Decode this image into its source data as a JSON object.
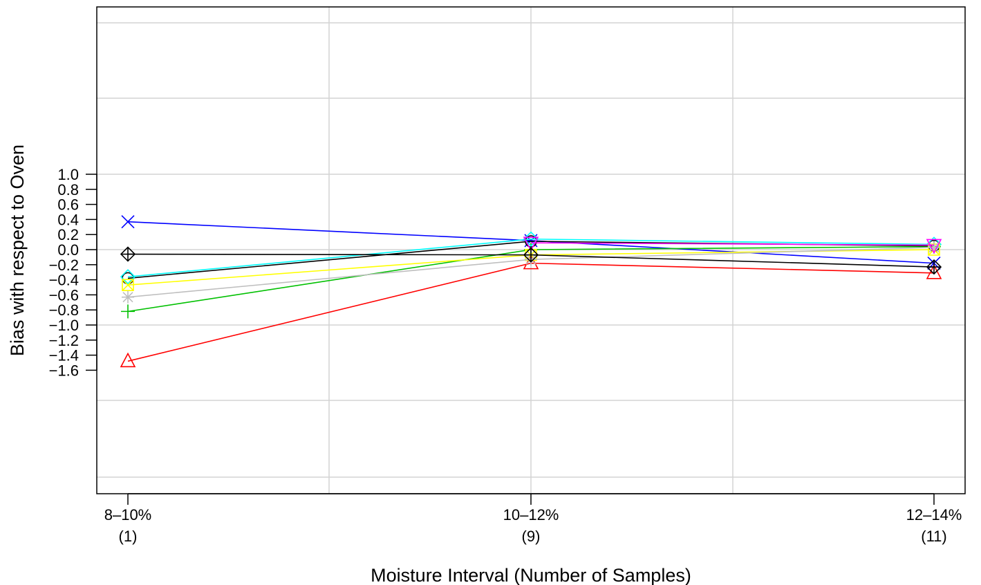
{
  "chart_data": {
    "type": "line",
    "xlabel": "Moisture Interval (Number of Samples)",
    "ylabel": "Bias with respect to Oven",
    "categories": [
      {
        "interval": "8–10%",
        "samples": "(1)"
      },
      {
        "interval": "10–12%",
        "samples": "(9)"
      },
      {
        "interval": "12–14%",
        "samples": "(11)"
      }
    ],
    "y_ticks": [
      "1.0",
      "0.8",
      "0.6",
      "0.4",
      "0.2",
      "0.0",
      "−0.2",
      "−0.4",
      "−0.6",
      "−0.8",
      "−1.0",
      "−1.2",
      "−1.4",
      "−1.6"
    ],
    "ylim": [
      -1.6,
      1.0
    ],
    "grid": true,
    "legend": "none",
    "series": [
      {
        "color": "#0000ff",
        "marker": "x",
        "values": [
          0.37,
          0.12,
          -0.18
        ]
      },
      {
        "color": "#ff0000",
        "marker": "triangle",
        "values": [
          -1.48,
          -0.18,
          -0.31
        ]
      },
      {
        "color": "#00c000",
        "marker": "plus",
        "values": [
          -0.82,
          0.0,
          0.04
        ]
      },
      {
        "color": "#000000",
        "marker": "circle",
        "values": [
          -0.38,
          0.11,
          0.05
        ]
      },
      {
        "color": "#00ffff",
        "marker": "diamond",
        "values": [
          -0.36,
          0.14,
          0.07
        ]
      },
      {
        "color": "#ffff00",
        "marker": "square-cross",
        "values": [
          -0.47,
          -0.07,
          0.0
        ]
      },
      {
        "color": "#bebebe",
        "marker": "asterisk",
        "values": [
          -0.63,
          -0.13,
          0.03
        ]
      },
      {
        "color": "#ff00ff",
        "marker": "inverted-triangle",
        "values": [
          null,
          0.09,
          0.06
        ]
      },
      {
        "color": "#000000",
        "marker": "diamond-plus",
        "values": [
          -0.06,
          -0.07,
          -0.23
        ]
      }
    ]
  }
}
